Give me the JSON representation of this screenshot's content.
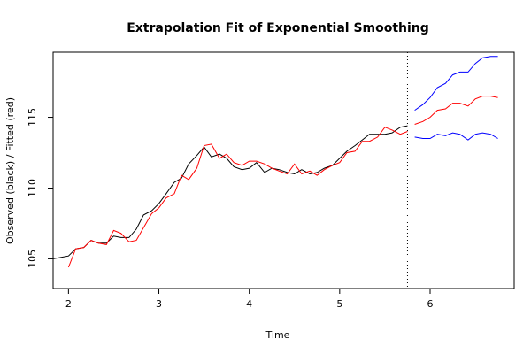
{
  "chart_data": {
    "type": "line",
    "title": "Extrapolation Fit of Exponential Smoothing",
    "xlabel": "Time",
    "ylabel": "Observed (black) / Fitted (red)",
    "xlim": [
      1.83,
      6.93
    ],
    "ylim": [
      102.9,
      119.6
    ],
    "x_ticks": [
      2,
      3,
      4,
      5,
      6
    ],
    "y_ticks": [
      105,
      110,
      115
    ],
    "forecast_origin": 5.75,
    "grid": false,
    "legend": "none",
    "colors": {
      "observed": "#000000",
      "fitted": "#ff0000",
      "forecast": "#ff0000",
      "bounds": "#0000ff",
      "origin_line": "#000000"
    },
    "series": [
      {
        "key": "observed",
        "x": [
          1.83,
          1.92,
          2.0,
          2.08,
          2.17,
          2.25,
          2.33,
          2.42,
          2.5,
          2.58,
          2.67,
          2.75,
          2.83,
          2.92,
          3.0,
          3.08,
          3.17,
          3.25,
          3.33,
          3.42,
          3.5,
          3.58,
          3.67,
          3.75,
          3.83,
          3.92,
          4.0,
          4.08,
          4.17,
          4.25,
          4.33,
          4.42,
          4.5,
          4.58,
          4.67,
          4.75,
          4.83,
          4.92,
          5.0,
          5.08,
          5.17,
          5.25,
          5.33,
          5.42,
          5.5,
          5.58,
          5.67,
          5.75
        ],
        "y": [
          105.0,
          105.1,
          105.2,
          105.7,
          105.8,
          106.3,
          106.1,
          106.1,
          106.6,
          106.5,
          106.5,
          107.1,
          108.1,
          108.4,
          108.9,
          109.6,
          110.4,
          110.7,
          111.7,
          112.3,
          112.9,
          112.2,
          112.4,
          112.1,
          111.5,
          111.3,
          111.4,
          111.8,
          111.1,
          111.4,
          111.3,
          111.1,
          111.0,
          111.3,
          111.0,
          111.1,
          111.4,
          111.6,
          112.1,
          112.6,
          113.0,
          113.4,
          113.8,
          113.8,
          113.8,
          113.9,
          114.3,
          114.4
        ]
      },
      {
        "key": "fitted",
        "x": [
          2.0,
          2.08,
          2.17,
          2.25,
          2.33,
          2.42,
          2.5,
          2.58,
          2.67,
          2.75,
          2.83,
          2.92,
          3.0,
          3.08,
          3.17,
          3.25,
          3.33,
          3.42,
          3.5,
          3.58,
          3.67,
          3.75,
          3.83,
          3.92,
          4.0,
          4.08,
          4.17,
          4.25,
          4.33,
          4.42,
          4.5,
          4.58,
          4.67,
          4.75,
          4.83,
          4.92,
          5.0,
          5.08,
          5.17,
          5.25,
          5.33,
          5.42,
          5.5,
          5.58,
          5.67,
          5.75
        ],
        "y": [
          104.4,
          105.7,
          105.8,
          106.3,
          106.1,
          106.0,
          107.0,
          106.8,
          106.2,
          106.3,
          107.2,
          108.2,
          108.6,
          109.3,
          109.6,
          110.9,
          110.6,
          111.4,
          113.0,
          113.1,
          112.1,
          112.4,
          111.8,
          111.6,
          111.9,
          111.9,
          111.7,
          111.4,
          111.2,
          111.0,
          111.7,
          111.0,
          111.2,
          110.9,
          111.3,
          111.6,
          111.8,
          112.5,
          112.6,
          113.3,
          113.3,
          113.6,
          114.3,
          114.1,
          113.8,
          114.0
        ]
      },
      {
        "key": "forecast",
        "x": [
          5.83,
          5.92,
          6.0,
          6.08,
          6.17,
          6.25,
          6.33,
          6.42,
          6.5,
          6.58,
          6.67,
          6.75
        ],
        "y": [
          114.5,
          114.7,
          115.0,
          115.5,
          115.6,
          116.0,
          116.0,
          115.8,
          116.3,
          116.5,
          116.5,
          116.4
        ]
      },
      {
        "key": "upper",
        "x": [
          5.83,
          5.92,
          6.0,
          6.08,
          6.17,
          6.25,
          6.33,
          6.42,
          6.5,
          6.58,
          6.67,
          6.75
        ],
        "y": [
          115.5,
          115.9,
          116.4,
          117.1,
          117.4,
          118.0,
          118.2,
          118.2,
          118.8,
          119.2,
          119.3,
          119.3
        ]
      },
      {
        "key": "lower",
        "x": [
          5.83,
          5.92,
          6.0,
          6.08,
          6.17,
          6.25,
          6.33,
          6.42,
          6.5,
          6.58,
          6.67,
          6.75
        ],
        "y": [
          113.6,
          113.5,
          113.5,
          113.8,
          113.7,
          113.9,
          113.8,
          113.4,
          113.8,
          113.9,
          113.8,
          113.5
        ]
      }
    ]
  }
}
